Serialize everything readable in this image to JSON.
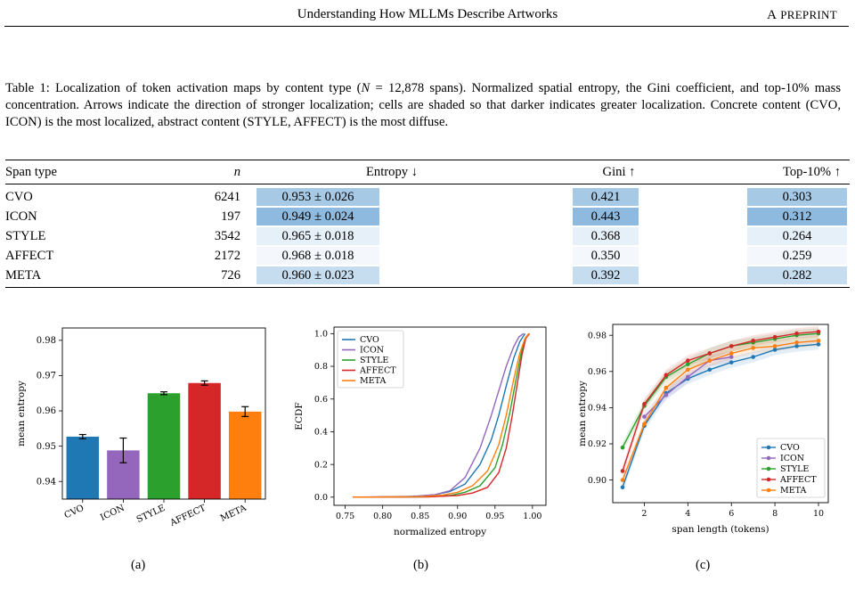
{
  "header": {
    "title": "Understanding How MLLMs Describe Artworks",
    "preprint": "A Preprint"
  },
  "caption": {
    "label": "Table 1:",
    "text1": "Localization of token activation maps by content type (",
    "n_var": "N",
    "text2": " = 12,878 spans). Normalized spatial entropy, the Gini coefficient, and top-10% mass concentration. Arrows indicate the direction of stronger localization; cells are shaded so that darker indicates greater localization. Concrete content (",
    "sc1": "CVO, ICON",
    "text3": ") is the most localized, abstract content (",
    "sc2": "STYLE, AFFECT",
    "text4": ") is the most diffuse."
  },
  "table": {
    "headers": [
      "Span type",
      "n",
      "Entropy ↓",
      "Gini ↑",
      "Top-10% ↑"
    ],
    "rows": [
      {
        "span": "CVO",
        "n": "6241",
        "entropy": "0.953 ± 0.026",
        "gini": "0.421",
        "top10": "0.303",
        "shade": {
          "entropy": "#a6c9e5",
          "gini": "#a6c9e5",
          "top10": "#a6c9e5"
        }
      },
      {
        "span": "ICON",
        "n": "197",
        "entropy": "0.949 ± 0.024",
        "gini": "0.443",
        "top10": "0.312",
        "shade": {
          "entropy": "#8fbadf",
          "gini": "#8fbadf",
          "top10": "#8fbadf"
        }
      },
      {
        "span": "STYLE",
        "n": "3542",
        "entropy": "0.965 ± 0.018",
        "gini": "0.368",
        "top10": "0.264",
        "shade": {
          "entropy": "#e6f0f9",
          "gini": "#e6f0f9",
          "top10": "#e6f0f9"
        }
      },
      {
        "span": "AFFECT",
        "n": "2172",
        "entropy": "0.968 ± 0.018",
        "gini": "0.350",
        "top10": "0.259",
        "shade": {
          "entropy": "#f4f8fc",
          "gini": "#f4f8fc",
          "top10": "#f4f8fc"
        }
      },
      {
        "span": "META",
        "n": "726",
        "entropy": "0.960 ± 0.023",
        "gini": "0.392",
        "top10": "0.282",
        "shade": {
          "entropy": "#c6ddf0",
          "gini": "#c6ddf0",
          "top10": "#c6ddf0"
        }
      }
    ]
  },
  "colors": {
    "CVO": "#1f77b4",
    "ICON": "#9467bd",
    "STYLE": "#2ca02c",
    "AFFECT": "#d62728",
    "META": "#ff7f0e"
  },
  "chart_data": [
    {
      "type": "bar",
      "categories": [
        "CVO",
        "ICON",
        "STYLE",
        "AFFECT",
        "META"
      ],
      "values": [
        0.9527,
        0.9488,
        0.965,
        0.9679,
        0.9598
      ],
      "errors": [
        0.0006,
        0.0035,
        0.0004,
        0.0006,
        0.0014
      ],
      "xlabel": "",
      "ylabel": "mean entropy",
      "ylim": [
        0.935,
        0.9835
      ],
      "yticks": [
        "0.94",
        "0.95",
        "0.96",
        "0.97",
        "0.98"
      ],
      "subfigure": "(a)"
    },
    {
      "type": "line",
      "xlabel": "normalized entropy",
      "ylabel": "ECDF",
      "xlim": [
        0.735,
        1.018
      ],
      "ylim": [
        -0.05,
        1.04
      ],
      "xticks": [
        "0.75",
        "0.80",
        "0.85",
        "0.90",
        "0.95",
        "1.00"
      ],
      "yticks": [
        "0.0",
        "0.2",
        "0.4",
        "0.6",
        "0.8",
        "1.0"
      ],
      "legend": "upper-left",
      "series": [
        {
          "name": "CVO",
          "points": [
            [
              0.76,
              0
            ],
            [
              0.82,
              0.002
            ],
            [
              0.85,
              0.006
            ],
            [
              0.87,
              0.015
            ],
            [
              0.89,
              0.035
            ],
            [
              0.91,
              0.08
            ],
            [
              0.93,
              0.2
            ],
            [
              0.945,
              0.35
            ],
            [
              0.955,
              0.5
            ],
            [
              0.965,
              0.68
            ],
            [
              0.975,
              0.85
            ],
            [
              0.983,
              0.95
            ],
            [
              0.99,
              1.0
            ]
          ]
        },
        {
          "name": "ICON",
          "points": [
            [
              0.76,
              0
            ],
            [
              0.84,
              0.005
            ],
            [
              0.87,
              0.015
            ],
            [
              0.89,
              0.04
            ],
            [
              0.91,
              0.12
            ],
            [
              0.93,
              0.3
            ],
            [
              0.945,
              0.5
            ],
            [
              0.955,
              0.65
            ],
            [
              0.965,
              0.8
            ],
            [
              0.975,
              0.92
            ],
            [
              0.982,
              0.98
            ],
            [
              0.988,
              1.0
            ]
          ]
        },
        {
          "name": "STYLE",
          "points": [
            [
              0.76,
              0
            ],
            [
              0.85,
              0.002
            ],
            [
              0.89,
              0.01
            ],
            [
              0.91,
              0.03
            ],
            [
              0.93,
              0.07
            ],
            [
              0.95,
              0.18
            ],
            [
              0.96,
              0.32
            ],
            [
              0.97,
              0.52
            ],
            [
              0.978,
              0.72
            ],
            [
              0.985,
              0.88
            ],
            [
              0.99,
              0.97
            ],
            [
              0.995,
              1.0
            ]
          ]
        },
        {
          "name": "AFFECT",
          "points": [
            [
              0.76,
              0
            ],
            [
              0.86,
              0.002
            ],
            [
              0.9,
              0.01
            ],
            [
              0.92,
              0.025
            ],
            [
              0.94,
              0.06
            ],
            [
              0.955,
              0.15
            ],
            [
              0.965,
              0.3
            ],
            [
              0.973,
              0.5
            ],
            [
              0.98,
              0.7
            ],
            [
              0.986,
              0.87
            ],
            [
              0.991,
              0.97
            ],
            [
              0.996,
              1.0
            ]
          ]
        },
        {
          "name": "META",
          "points": [
            [
              0.76,
              0
            ],
            [
              0.85,
              0.003
            ],
            [
              0.88,
              0.012
            ],
            [
              0.9,
              0.03
            ],
            [
              0.92,
              0.07
            ],
            [
              0.94,
              0.16
            ],
            [
              0.955,
              0.32
            ],
            [
              0.965,
              0.5
            ],
            [
              0.975,
              0.72
            ],
            [
              0.983,
              0.88
            ],
            [
              0.99,
              0.97
            ],
            [
              0.995,
              1.0
            ]
          ]
        }
      ],
      "subfigure": "(b)"
    },
    {
      "type": "line",
      "xlabel": "span length (tokens)",
      "ylabel": "mean entropy",
      "xlim": [
        0.55,
        10.45
      ],
      "ylim": [
        0.8875,
        0.986
      ],
      "xticks": [
        "2",
        "4",
        "6",
        "8",
        "10"
      ],
      "yticks": [
        "0.90",
        "0.92",
        "0.94",
        "0.96",
        "0.98"
      ],
      "legend": "lower-right",
      "series": [
        {
          "name": "CVO",
          "x": [
            1,
            2,
            3,
            4,
            5,
            6,
            7,
            8,
            9,
            10
          ],
          "y": [
            0.896,
            0.93,
            0.948,
            0.956,
            0.961,
            0.965,
            0.968,
            0.972,
            0.974,
            0.975
          ]
        },
        {
          "name": "ICON",
          "x": [
            2,
            3,
            4,
            5,
            6
          ],
          "y": [
            0.935,
            0.947,
            0.957,
            0.966,
            0.968
          ]
        },
        {
          "name": "STYLE",
          "x": [
            1,
            2,
            3,
            4,
            5,
            6,
            7,
            8,
            9,
            10
          ],
          "y": [
            0.918,
            0.941,
            0.957,
            0.964,
            0.97,
            0.974,
            0.976,
            0.978,
            0.98,
            0.981
          ]
        },
        {
          "name": "AFFECT",
          "x": [
            1,
            2,
            3,
            4,
            5,
            6,
            7,
            8,
            9,
            10
          ],
          "y": [
            0.905,
            0.942,
            0.958,
            0.966,
            0.97,
            0.974,
            0.977,
            0.979,
            0.981,
            0.982
          ]
        },
        {
          "name": "META",
          "x": [
            1,
            2,
            3,
            4,
            5,
            6,
            7,
            8,
            9,
            10
          ],
          "y": [
            0.9,
            0.931,
            0.951,
            0.961,
            0.966,
            0.97,
            0.973,
            0.974,
            0.976,
            0.977
          ]
        }
      ],
      "subfigure": "(c)"
    }
  ]
}
